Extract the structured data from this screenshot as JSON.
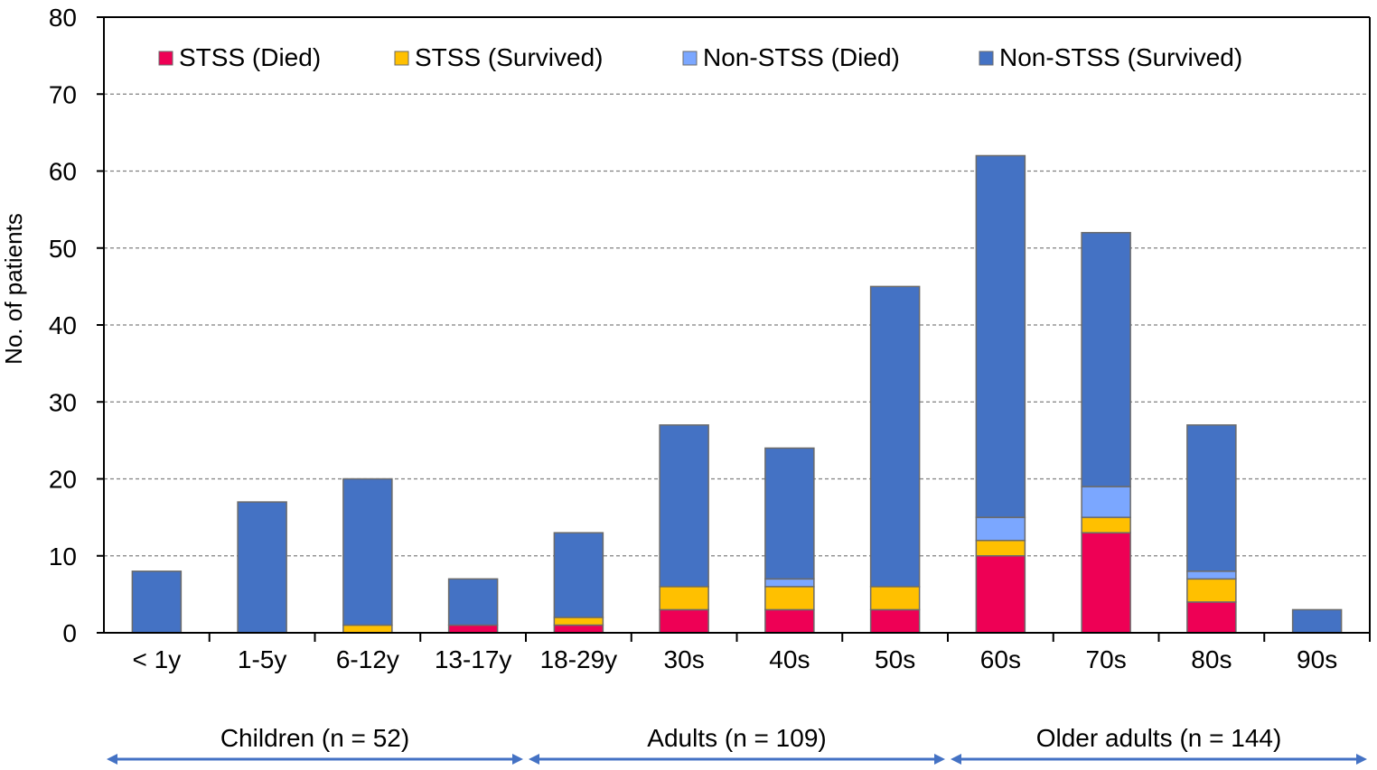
{
  "chart_data": {
    "type": "bar",
    "stacked": true,
    "title": "",
    "xlabel": "",
    "ylabel": "No. of patients",
    "ylim": [
      0,
      80
    ],
    "yticks": [
      0,
      10,
      20,
      30,
      40,
      50,
      60,
      70,
      80
    ],
    "grid": "horizontal dashed",
    "legend_position": "top",
    "categories": [
      "< 1y",
      "1-5y",
      "6-12y",
      "13-17y",
      "18-29y",
      "30s",
      "40s",
      "50s",
      "60s",
      "70s",
      "80s",
      "90s"
    ],
    "series": [
      {
        "name": "STSS (Died)",
        "color": "#EE0055",
        "values": [
          0,
          0,
          0,
          1,
          1,
          3,
          3,
          3,
          10,
          13,
          4,
          0
        ]
      },
      {
        "name": "STSS (Survived)",
        "color": "#FFC000",
        "values": [
          0,
          0,
          1,
          0,
          1,
          3,
          3,
          3,
          2,
          2,
          3,
          0
        ]
      },
      {
        "name": "Non-STSS (Died)",
        "color": "#7BA7FF",
        "values": [
          0,
          0,
          0,
          0,
          0,
          0,
          1,
          0,
          3,
          4,
          1,
          0
        ]
      },
      {
        "name": "Non-STSS (Survived)",
        "color": "#4472C4",
        "values": [
          8,
          17,
          19,
          6,
          11,
          21,
          17,
          39,
          47,
          33,
          19,
          3
        ]
      }
    ],
    "totals": [
      8,
      17,
      20,
      7,
      13,
      27,
      24,
      45,
      62,
      52,
      27,
      3
    ],
    "groups": [
      {
        "label": "Children (n = 52)",
        "from": 0,
        "to": 3
      },
      {
        "label": "Adults (n = 109)",
        "from": 4,
        "to": 7
      },
      {
        "label": "Older adults (n = 144)",
        "from": 8,
        "to": 11
      }
    ],
    "arrow_color": "#4472C4"
  }
}
